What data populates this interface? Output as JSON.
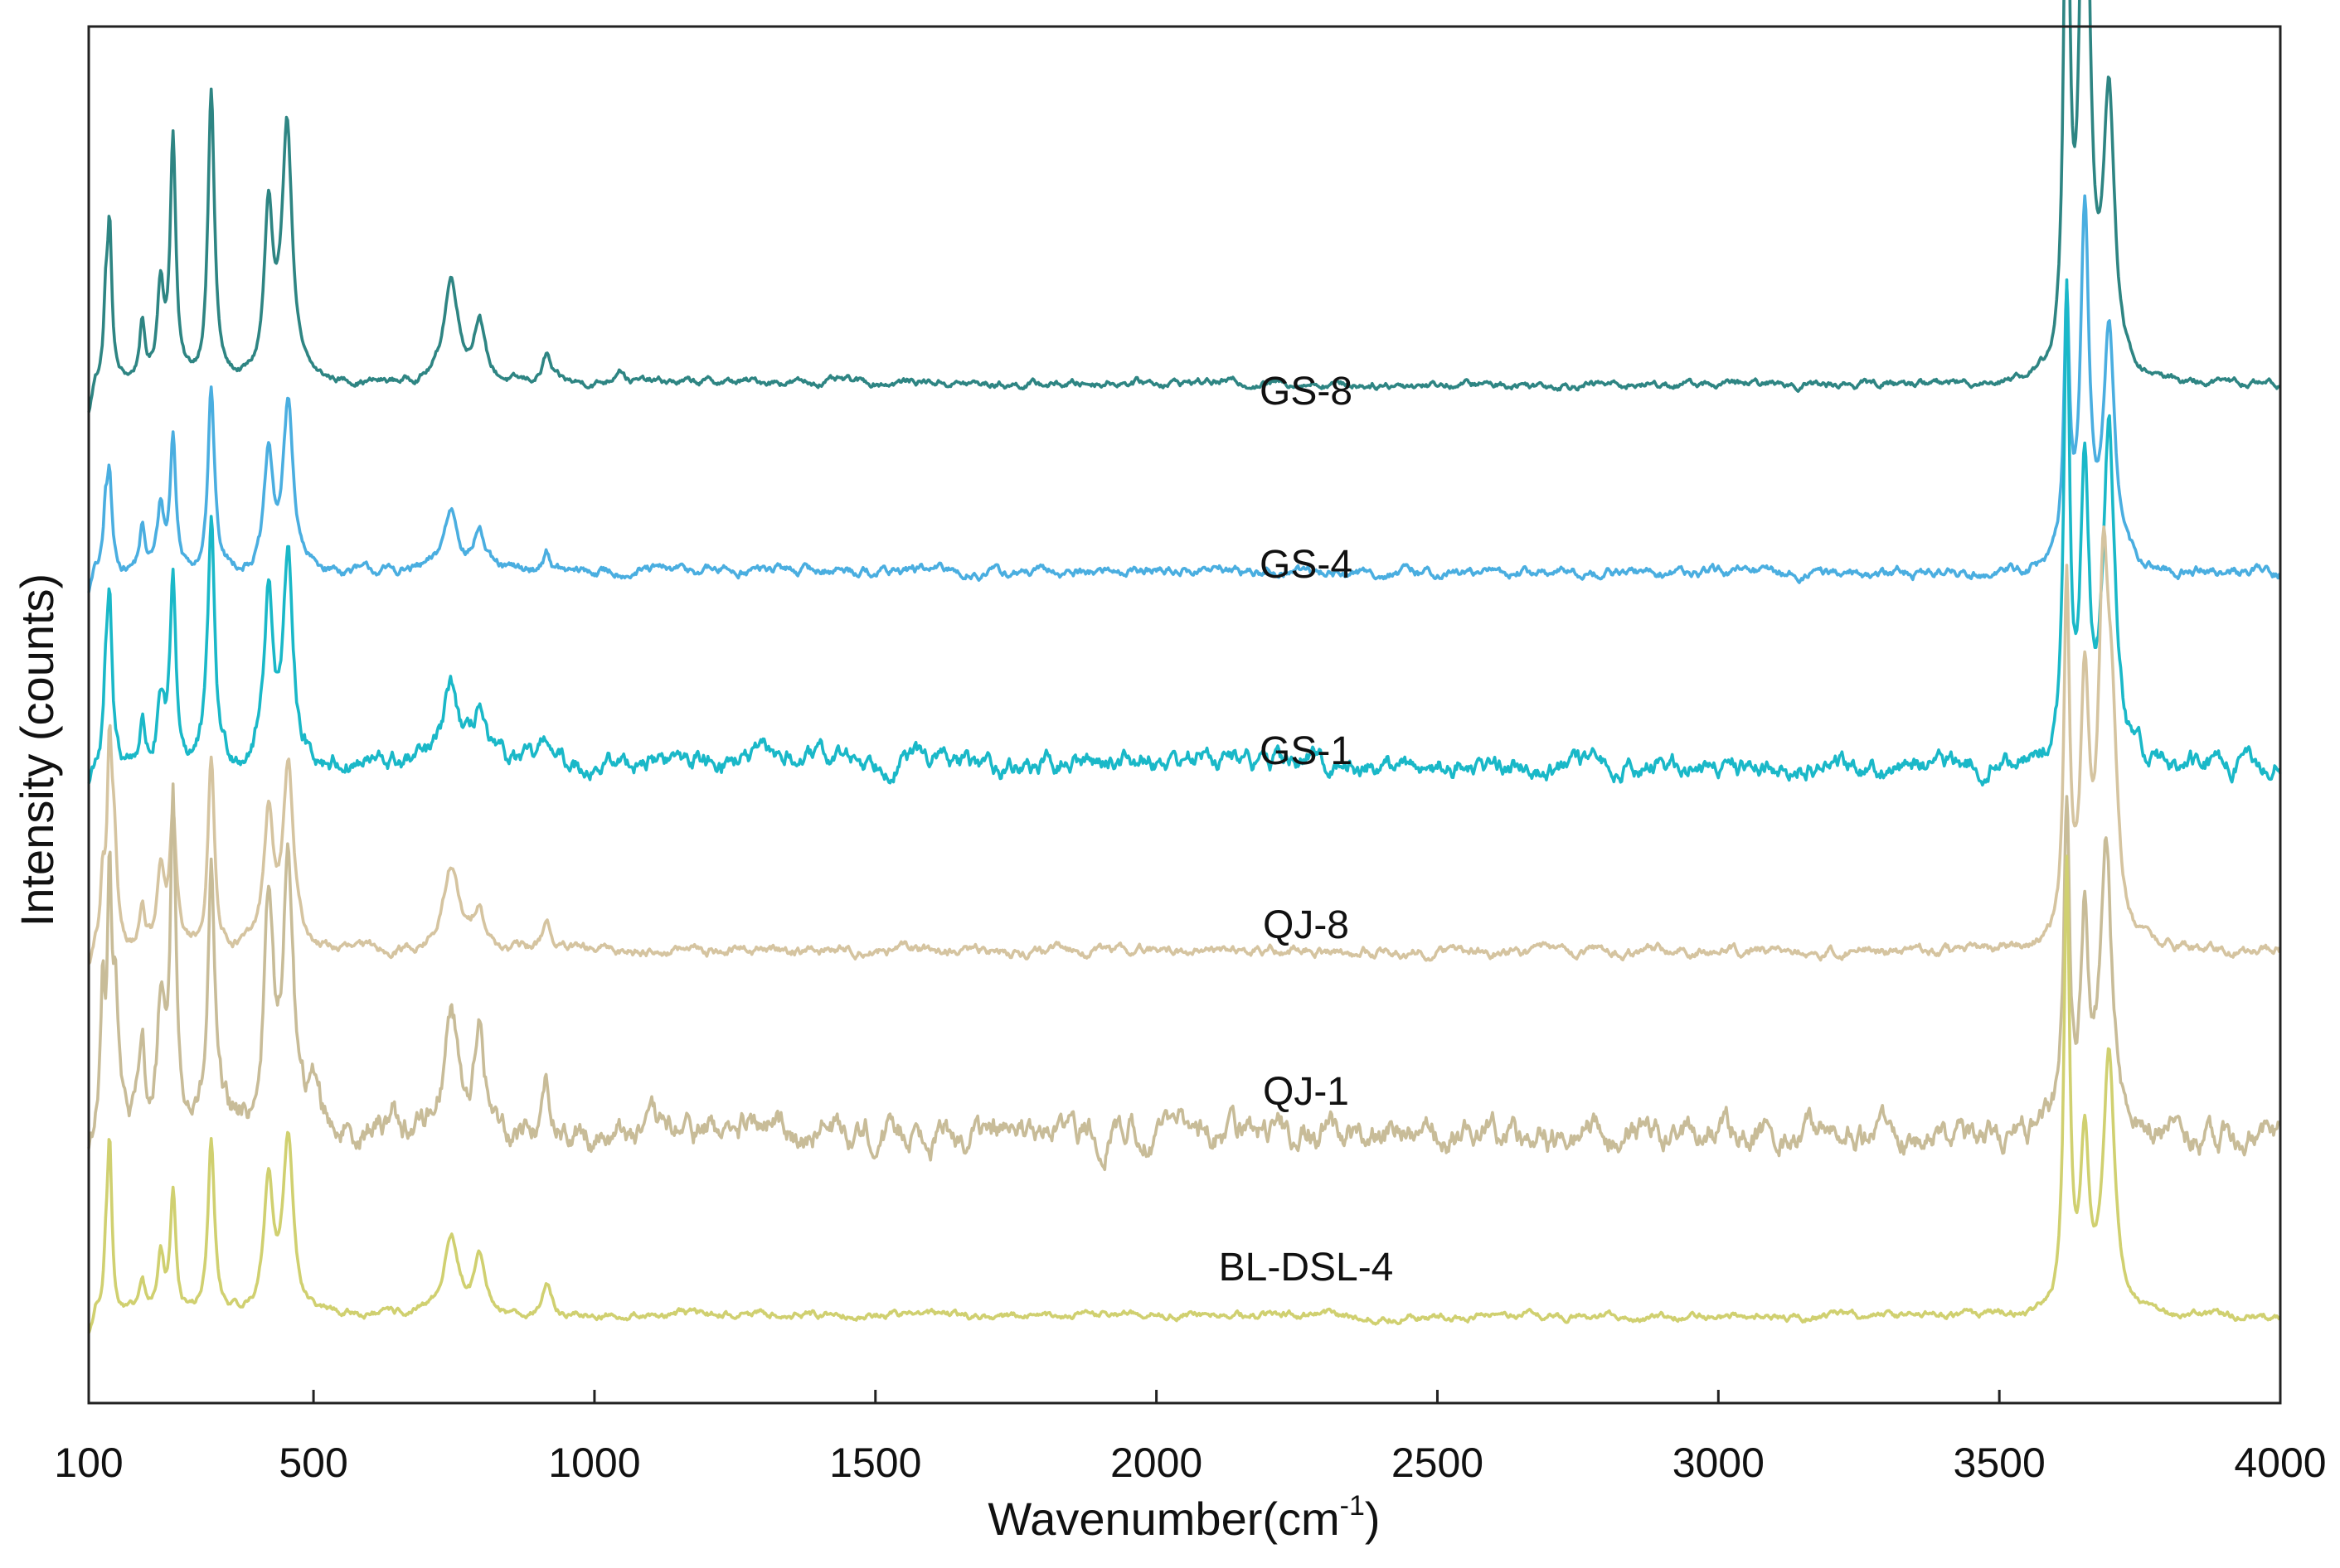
{
  "chart_data": {
    "type": "line",
    "title": "",
    "xlabel": "Wavenumber(cm",
    "xlabel_sup": "-1",
    "xlabel_close": ")",
    "ylabel": "Intensity (counts)",
    "xlim": [
      100,
      4000
    ],
    "x_ticks": [
      100,
      500,
      1000,
      1500,
      2000,
      2500,
      3000,
      3500,
      4000
    ],
    "y_ticks": [],
    "grid": false,
    "legend": "none (labels placed inline above each trace)",
    "series": [
      {
        "name": "GS-8",
        "color": "#2e8583",
        "baseline": 0.74,
        "peak_scale": 0.5,
        "noise": 0.0015,
        "humps": 0.2,
        "peaks": [
          [
            130,
            0.09,
            4
          ],
          [
            137,
            0.22,
            5
          ],
          [
            195,
            0.08,
            6
          ],
          [
            228,
            0.14,
            7
          ],
          [
            250,
            0.35,
            6
          ],
          [
            318,
            0.42,
            7
          ],
          [
            420,
            0.24,
            9
          ],
          [
            453,
            0.37,
            11
          ],
          [
            745,
            0.15,
            16
          ],
          [
            795,
            0.09,
            11
          ],
          [
            915,
            0.04,
            9
          ],
          [
            1045,
            0.025,
            10
          ],
          [
            3620,
            0.85,
            6
          ],
          [
            3652,
            1.0,
            9
          ],
          [
            3695,
            0.4,
            12
          ]
        ]
      },
      {
        "name": "GS-4",
        "color": "#4aaee0",
        "baseline": 0.603,
        "peak_scale": 0.3,
        "noise": 0.002,
        "humps": 0.4,
        "peaks": [
          [
            130,
            0.13,
            4
          ],
          [
            137,
            0.22,
            5
          ],
          [
            195,
            0.1,
            6
          ],
          [
            228,
            0.15,
            7
          ],
          [
            250,
            0.32,
            6
          ],
          [
            318,
            0.44,
            7
          ],
          [
            420,
            0.27,
            9
          ],
          [
            455,
            0.4,
            11
          ],
          [
            745,
            0.15,
            16
          ],
          [
            795,
            0.1,
            11
          ],
          [
            915,
            0.05,
            9
          ],
          [
            3620,
            0.62,
            6
          ],
          [
            3652,
            0.84,
            9
          ],
          [
            3695,
            0.58,
            12
          ]
        ]
      },
      {
        "name": "GS-1",
        "color": "#1ab8c8",
        "baseline": 0.463,
        "peak_scale": 0.33,
        "noise": 0.004,
        "humps": 1.0,
        "peaks": [
          [
            130,
            0.14,
            4
          ],
          [
            137,
            0.34,
            5
          ],
          [
            195,
            0.09,
            6
          ],
          [
            228,
            0.12,
            7
          ],
          [
            250,
            0.39,
            6
          ],
          [
            318,
            0.53,
            7
          ],
          [
            420,
            0.37,
            10
          ],
          [
            455,
            0.42,
            11
          ],
          [
            745,
            0.17,
            16
          ],
          [
            795,
            0.12,
            11
          ],
          [
            915,
            0.06,
            9
          ],
          [
            3620,
            1.0,
            6
          ],
          [
            3652,
            0.65,
            9
          ],
          [
            3695,
            0.72,
            12
          ]
        ]
      },
      {
        "name": "QJ-8",
        "color": "#d5c4a0",
        "baseline": 0.328,
        "peak_scale": 0.32,
        "noise": 0.002,
        "humps": 0.2,
        "peaks": [
          [
            125,
            0.14,
            4
          ],
          [
            137,
            0.42,
            5
          ],
          [
            145,
            0.2,
            6
          ],
          [
            195,
            0.09,
            6
          ],
          [
            228,
            0.17,
            7
          ],
          [
            250,
            0.29,
            7
          ],
          [
            318,
            0.43,
            7
          ],
          [
            420,
            0.3,
            10
          ],
          [
            455,
            0.41,
            11
          ],
          [
            745,
            0.19,
            16
          ],
          [
            795,
            0.1,
            11
          ],
          [
            915,
            0.07,
            9
          ],
          [
            3620,
            0.8,
            6
          ],
          [
            3652,
            0.56,
            9
          ],
          [
            3685,
            0.74,
            10
          ],
          [
            3700,
            0.45,
            12
          ]
        ]
      },
      {
        "name": "QJ-1",
        "color": "#c8bc98",
        "baseline": 0.195,
        "peak_scale": 0.3,
        "noise": 0.006,
        "humps": 0.6,
        "peaks": [
          [
            125,
            0.32,
            4
          ],
          [
            137,
            0.62,
            5
          ],
          [
            148,
            0.28,
            6
          ],
          [
            195,
            0.18,
            6
          ],
          [
            228,
            0.28,
            7
          ],
          [
            250,
            0.8,
            6
          ],
          [
            318,
            0.62,
            7
          ],
          [
            420,
            0.53,
            10
          ],
          [
            455,
            0.63,
            11
          ],
          [
            505,
            0.1,
            12
          ],
          [
            640,
            0.06,
            10
          ],
          [
            745,
            0.29,
            16
          ],
          [
            795,
            0.23,
            11
          ],
          [
            915,
            0.11,
            9
          ],
          [
            3620,
            0.78,
            6
          ],
          [
            3652,
            0.52,
            9
          ],
          [
            3690,
            0.7,
            12
          ]
        ]
      },
      {
        "name": "BL-DSL-4",
        "color": "#d0d070",
        "baseline": 0.063,
        "peak_scale": 0.32,
        "noise": 0.0015,
        "humps": 0.3,
        "peaks": [
          [
            130,
            0.1,
            4
          ],
          [
            137,
            0.39,
            5
          ],
          [
            195,
            0.07,
            6
          ],
          [
            228,
            0.13,
            7
          ],
          [
            250,
            0.27,
            6
          ],
          [
            318,
            0.39,
            7
          ],
          [
            420,
            0.3,
            10
          ],
          [
            455,
            0.4,
            11
          ],
          [
            745,
            0.18,
            16
          ],
          [
            795,
            0.12,
            11
          ],
          [
            915,
            0.07,
            9
          ],
          [
            3620,
            1.0,
            6
          ],
          [
            3652,
            0.38,
            9
          ],
          [
            3695,
            0.6,
            12
          ]
        ]
      }
    ]
  }
}
